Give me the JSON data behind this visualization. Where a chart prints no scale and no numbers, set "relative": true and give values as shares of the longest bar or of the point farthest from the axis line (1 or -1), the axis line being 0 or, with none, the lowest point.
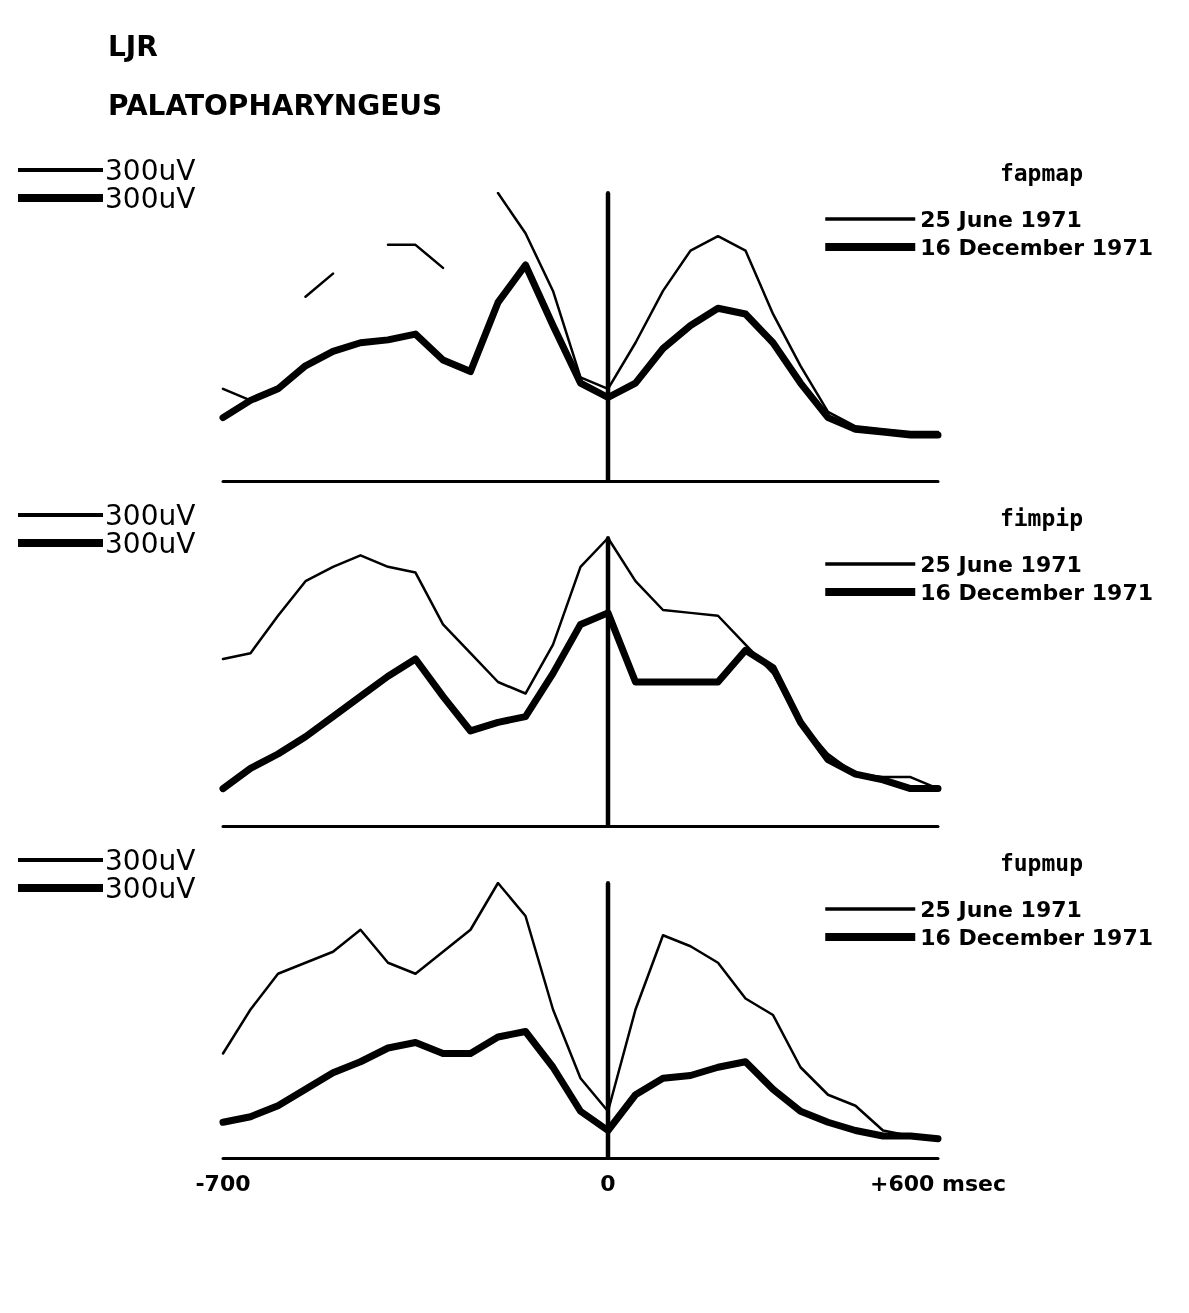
{
  "chart_data": [
    {
      "type": "line",
      "title": "LJR",
      "subtitle": "PALATOPHARYNGEUS",
      "legend_title": "fapmap",
      "annotations": [
        "300uV",
        "300uV"
      ],
      "relative": true,
      "x": [
        -700,
        -650,
        -600,
        -550,
        -500,
        -450,
        -400,
        -350,
        -300,
        -250,
        -200,
        -150,
        -100,
        -50,
        0,
        50,
        100,
        150,
        200,
        250,
        300,
        350,
        400,
        450,
        500,
        550,
        600
      ],
      "xlim": [
        -700,
        600
      ],
      "tick_labels": false,
      "legend": "top right",
      "grid": false,
      "marker": "none",
      "line_style": "solid",
      "ref_lines": [
        {
          "axis": "x",
          "value": 0,
          "color": "#000000"
        }
      ],
      "series": [
        {
          "name": "25 June 1971",
          "color": "#000000",
          "values": [
            0.32,
            0.28,
            null,
            0.64,
            0.72,
            null,
            0.82,
            0.82,
            0.74,
            null,
            1.0,
            0.86,
            0.66,
            0.36,
            0.32,
            0.48,
            0.66,
            0.8,
            0.85,
            0.8,
            0.58,
            0.4,
            0.24,
            0.19,
            0.18,
            0.17,
            0.17
          ]
        },
        {
          "name": "16 December 1971",
          "color": "#000000",
          "values": [
            0.22,
            0.28,
            0.32,
            0.4,
            0.45,
            0.48,
            0.49,
            0.51,
            0.42,
            0.38,
            0.62,
            0.75,
            0.54,
            0.34,
            0.29,
            0.34,
            0.46,
            0.54,
            0.6,
            0.58,
            0.48,
            0.34,
            0.22,
            0.18,
            0.17,
            0.16,
            0.16
          ]
        }
      ]
    },
    {
      "type": "line",
      "legend_title": "fimpip",
      "annotations": [
        "300uV",
        "300uV"
      ],
      "relative": true,
      "x": [
        -700,
        -650,
        -600,
        -550,
        -500,
        -450,
        -400,
        -350,
        -300,
        -250,
        -200,
        -150,
        -100,
        -50,
        0,
        50,
        100,
        150,
        200,
        250,
        300,
        350,
        400,
        450,
        500,
        550,
        600
      ],
      "xlim": [
        -700,
        600
      ],
      "tick_labels": false,
      "legend": "top right",
      "grid": false,
      "marker": "none",
      "line_style": "solid",
      "ref_lines": [
        {
          "axis": "x",
          "value": 0,
          "color": "#000000"
        }
      ],
      "series": [
        {
          "name": "25 June 1971",
          "color": "#000000",
          "values": [
            0.58,
            0.6,
            0.73,
            0.85,
            0.9,
            0.94,
            0.9,
            0.88,
            0.7,
            0.6,
            0.5,
            0.46,
            0.63,
            0.9,
            1.0,
            0.85,
            0.75,
            0.74,
            0.73,
            0.63,
            0.53,
            0.36,
            0.25,
            0.18,
            0.17,
            0.17,
            0.13
          ]
        },
        {
          "name": "16 December 1971",
          "color": "#000000",
          "values": [
            0.13,
            0.2,
            0.25,
            0.31,
            0.38,
            0.45,
            0.52,
            0.58,
            0.45,
            0.33,
            0.36,
            0.38,
            0.53,
            0.7,
            0.74,
            0.5,
            0.5,
            0.5,
            0.5,
            0.61,
            0.55,
            0.36,
            0.23,
            0.18,
            0.16,
            0.13,
            0.13
          ]
        }
      ]
    },
    {
      "type": "line",
      "legend_title": "fupmup",
      "annotations": [
        "300uV",
        "300uV"
      ],
      "relative": true,
      "x": [
        -700,
        -650,
        -600,
        -550,
        -500,
        -450,
        -400,
        -350,
        -300,
        -250,
        -200,
        -150,
        -100,
        -50,
        0,
        50,
        100,
        150,
        200,
        250,
        300,
        350,
        400,
        450,
        500,
        550,
        600
      ],
      "xlim": [
        -700,
        600
      ],
      "xticks": [
        -700,
        0,
        {
          "value": 600,
          "label": "+600 msec"
        }
      ],
      "tick_labels": "x",
      "legend": "top right",
      "grid": false,
      "marker": "none",
      "line_style": "solid",
      "ref_lines": [
        {
          "axis": "x",
          "value": 0,
          "color": "#000000"
        }
      ],
      "series": [
        {
          "name": "25 June 1971",
          "color": "#000000",
          "values": [
            0.38,
            0.54,
            0.67,
            0.71,
            0.75,
            0.83,
            0.71,
            0.67,
            0.75,
            0.83,
            1.0,
            0.88,
            0.54,
            0.29,
            0.17,
            0.54,
            0.81,
            0.77,
            0.71,
            0.58,
            0.52,
            0.33,
            0.23,
            0.19,
            0.1,
            0.08,
            0.07
          ]
        },
        {
          "name": "16 December 1971",
          "color": "#000000",
          "values": [
            0.13,
            0.15,
            0.19,
            0.25,
            0.31,
            0.35,
            0.4,
            0.42,
            0.38,
            0.38,
            0.44,
            0.46,
            0.33,
            0.17,
            0.1,
            0.23,
            0.29,
            0.3,
            0.33,
            0.35,
            0.25,
            0.17,
            0.13,
            0.1,
            0.08,
            0.08,
            0.07
          ]
        }
      ]
    }
  ]
}
